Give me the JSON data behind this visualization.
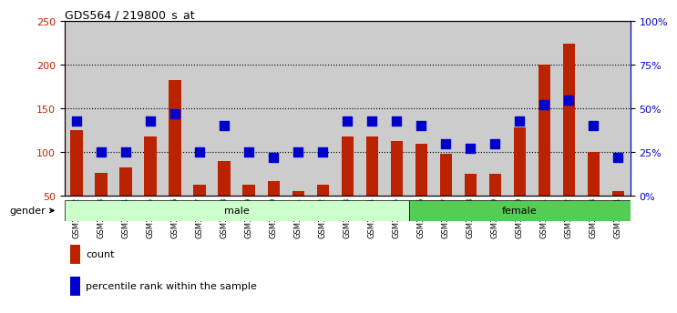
{
  "title": "GDS564 / 219800_s_at",
  "samples": [
    "GSM19192",
    "GSM19193",
    "GSM19194",
    "GSM19195",
    "GSM19196",
    "GSM19197",
    "GSM19198",
    "GSM19199",
    "GSM19200",
    "GSM19201",
    "GSM19202",
    "GSM19203",
    "GSM19204",
    "GSM19205",
    "GSM19206",
    "GSM19207",
    "GSM19208",
    "GSM19209",
    "GSM19210",
    "GSM19211",
    "GSM19212",
    "GSM19213",
    "GSM19214"
  ],
  "count": [
    125,
    76,
    82,
    118,
    183,
    62,
    90,
    62,
    67,
    55,
    63,
    118,
    118,
    113,
    110,
    98,
    75,
    75,
    128,
    200,
    224,
    100,
    55
  ],
  "percentile": [
    43,
    25,
    25,
    43,
    47,
    25,
    40,
    25,
    22,
    25,
    25,
    43,
    43,
    43,
    40,
    30,
    27,
    30,
    43,
    52,
    55,
    40,
    22
  ],
  "male_count": 14,
  "female_count": 9,
  "ylim_left": [
    50,
    250
  ],
  "ylim_right": [
    0,
    100
  ],
  "yticks_left": [
    50,
    100,
    150,
    200,
    250
  ],
  "yticks_right": [
    0,
    25,
    50,
    75,
    100
  ],
  "bar_color": "#bb2200",
  "dot_color": "#0000cc",
  "male_bg": "#ccffcc",
  "female_bg": "#55cc55",
  "axis_bg": "#cccccc",
  "bar_width": 0.5,
  "dot_size": 55
}
